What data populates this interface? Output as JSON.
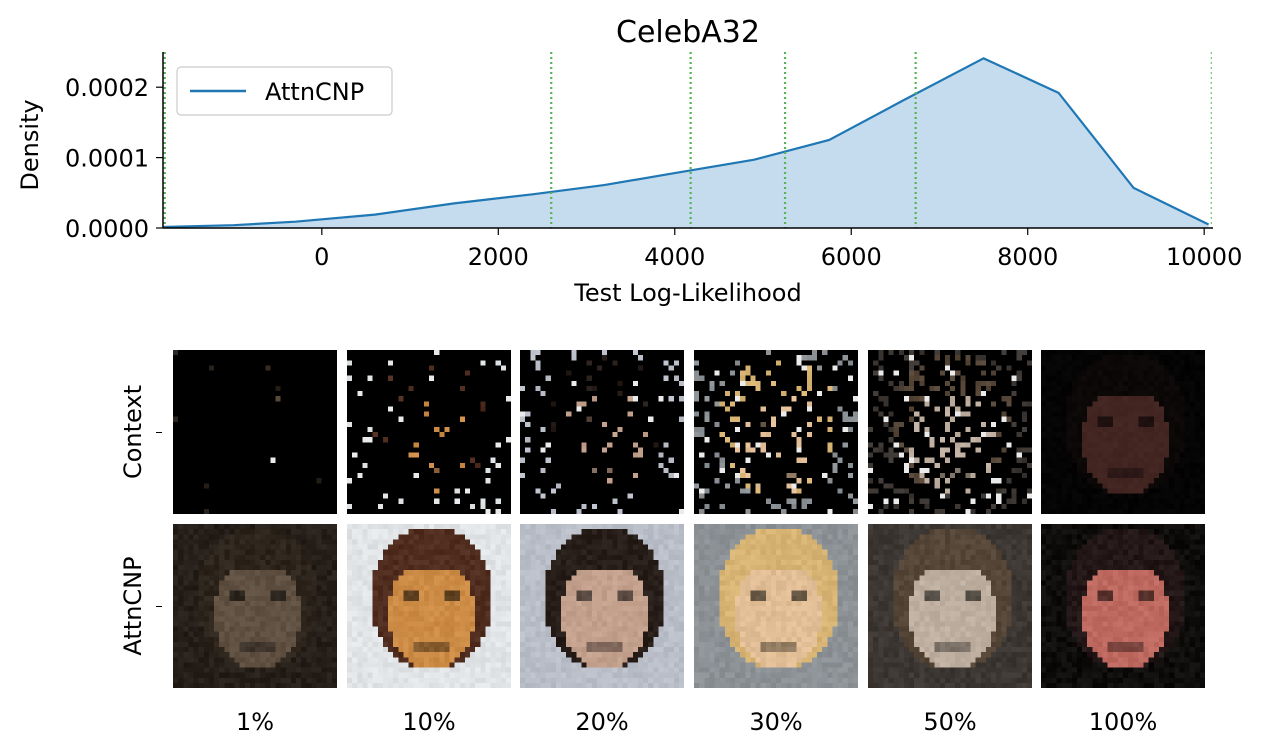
{
  "chart_data": {
    "type": "area",
    "title": "CelebA32",
    "xlabel": "Test Log-Likelihood",
    "ylabel": "Density",
    "xlim": [
      -1800,
      10100
    ],
    "ylim": [
      0,
      0.00025
    ],
    "xticks": [
      0,
      2000,
      4000,
      6000,
      8000,
      10000
    ],
    "xtick_labels": [
      "0",
      "2000",
      "4000",
      "6000",
      "8000",
      "10000"
    ],
    "yticks": [
      0,
      0.0001,
      0.0002
    ],
    "ytick_labels": [
      "0.0000",
      "0.0001",
      "0.0002"
    ],
    "legend_position": "top-left",
    "series": [
      {
        "name": "AttnCNP",
        "color": "#1f77b4",
        "fill": "#c4dcee",
        "x": [
          -1800,
          -1000,
          -300,
          600,
          1500,
          2400,
          3200,
          4000,
          4900,
          5750,
          6600,
          7500,
          8350,
          9200,
          10050
        ],
        "y": [
          1.5e-06,
          4e-06,
          9e-06,
          1.9e-05,
          3.5e-05,
          4.8e-05,
          6.1e-05,
          7.8e-05,
          9.7e-05,
          0.000125,
          0.000182,
          0.000241,
          0.000192,
          5.7e-05,
          5e-06
        ]
      }
    ],
    "vlines": {
      "color": "#55b555",
      "style": "dotted",
      "x": [
        -1780,
        2600,
        4180,
        5250,
        6730,
        10080
      ]
    }
  },
  "images": {
    "row_labels": [
      "Context",
      "AttnCNP"
    ],
    "col_labels": [
      "1%",
      "10%",
      "20%",
      "30%",
      "50%",
      "100%"
    ]
  }
}
